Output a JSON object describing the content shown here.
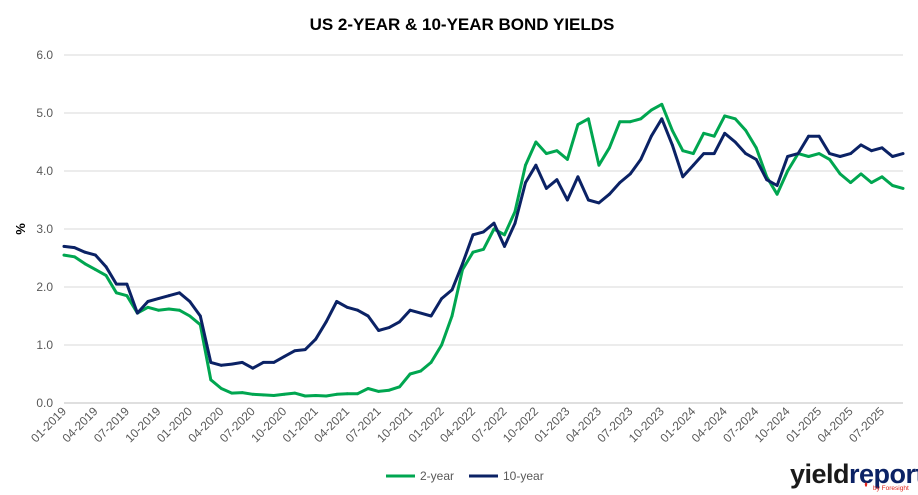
{
  "chart_data": {
    "type": "line",
    "title": "US 2-YEAR & 10-YEAR BOND YIELDS",
    "ylabel": "%",
    "xlabel": "",
    "ylim": [
      0,
      6
    ],
    "yticks": [
      "0.0",
      "1.0",
      "2.0",
      "3.0",
      "4.0",
      "5.0",
      "6.0"
    ],
    "xticks": [
      "01-2019",
      "04-2019",
      "07-2019",
      "10-2019",
      "01-2020",
      "04-2020",
      "07-2020",
      "10-2020",
      "01-2021",
      "04-2021",
      "07-2021",
      "10-2021",
      "01-2022",
      "04-2022",
      "07-2022",
      "10-2022",
      "01-2023",
      "04-2023",
      "07-2023",
      "10-2023",
      "01-2024",
      "04-2024",
      "07-2024",
      "10-2024",
      "01-2025",
      "04-2025",
      "07-2025"
    ],
    "x": [
      "01-2019",
      "02-2019",
      "03-2019",
      "04-2019",
      "05-2019",
      "06-2019",
      "07-2019",
      "08-2019",
      "09-2019",
      "10-2019",
      "11-2019",
      "12-2019",
      "01-2020",
      "02-2020",
      "03-2020",
      "04-2020",
      "05-2020",
      "06-2020",
      "07-2020",
      "08-2020",
      "09-2020",
      "10-2020",
      "11-2020",
      "12-2020",
      "01-2021",
      "02-2021",
      "03-2021",
      "04-2021",
      "05-2021",
      "06-2021",
      "07-2021",
      "08-2021",
      "09-2021",
      "10-2021",
      "11-2021",
      "12-2021",
      "01-2022",
      "02-2022",
      "03-2022",
      "04-2022",
      "05-2022",
      "06-2022",
      "07-2022",
      "08-2022",
      "09-2022",
      "10-2022",
      "11-2022",
      "12-2022",
      "01-2023",
      "02-2023",
      "03-2023",
      "04-2023",
      "05-2023",
      "06-2023",
      "07-2023",
      "08-2023",
      "09-2023",
      "10-2023",
      "11-2023",
      "12-2023",
      "01-2024",
      "02-2024",
      "03-2024",
      "04-2024",
      "05-2024",
      "06-2024",
      "07-2024",
      "08-2024",
      "09-2024",
      "10-2024",
      "11-2024",
      "12-2024",
      "01-2025",
      "02-2025",
      "03-2025",
      "04-2025",
      "05-2025",
      "06-2025",
      "07-2025",
      "08-2025",
      "09-2025"
    ],
    "series": [
      {
        "name": "2-year",
        "color": "#00a650",
        "values": [
          2.55,
          2.52,
          2.4,
          2.3,
          2.2,
          1.9,
          1.85,
          1.55,
          1.65,
          1.6,
          1.62,
          1.6,
          1.5,
          1.35,
          0.4,
          0.25,
          0.17,
          0.18,
          0.15,
          0.14,
          0.13,
          0.15,
          0.17,
          0.12,
          0.13,
          0.12,
          0.15,
          0.16,
          0.16,
          0.25,
          0.2,
          0.22,
          0.28,
          0.5,
          0.55,
          0.7,
          1.0,
          1.5,
          2.3,
          2.6,
          2.65,
          3.0,
          2.9,
          3.3,
          4.1,
          4.5,
          4.3,
          4.35,
          4.2,
          4.8,
          4.9,
          4.1,
          4.4,
          4.85,
          4.85,
          4.9,
          5.05,
          5.15,
          4.7,
          4.35,
          4.3,
          4.65,
          4.6,
          4.95,
          4.9,
          4.7,
          4.4,
          3.9,
          3.6,
          4.0,
          4.3,
          4.25,
          4.3,
          4.2,
          3.95,
          3.8,
          3.95,
          3.8,
          3.9,
          3.75,
          3.7
        ]
      },
      {
        "name": "10-year",
        "color": "#0b2265",
        "values": [
          2.7,
          2.68,
          2.6,
          2.55,
          2.35,
          2.05,
          2.05,
          1.55,
          1.75,
          1.8,
          1.85,
          1.9,
          1.75,
          1.5,
          0.7,
          0.65,
          0.67,
          0.7,
          0.6,
          0.7,
          0.7,
          0.8,
          0.9,
          0.92,
          1.1,
          1.4,
          1.75,
          1.65,
          1.6,
          1.5,
          1.25,
          1.3,
          1.4,
          1.6,
          1.55,
          1.5,
          1.8,
          1.95,
          2.4,
          2.9,
          2.95,
          3.1,
          2.7,
          3.1,
          3.8,
          4.1,
          3.7,
          3.85,
          3.5,
          3.9,
          3.5,
          3.45,
          3.6,
          3.8,
          3.95,
          4.2,
          4.6,
          4.9,
          4.45,
          3.9,
          4.1,
          4.3,
          4.3,
          4.65,
          4.5,
          4.3,
          4.2,
          3.85,
          3.75,
          4.25,
          4.3,
          4.6,
          4.6,
          4.3,
          4.25,
          4.3,
          4.45,
          4.35,
          4.4,
          4.25,
          4.3
        ]
      }
    ],
    "legend": "bottom",
    "grid": true
  },
  "branding": {
    "logo_word_1": "yield",
    "logo_word_2": "report",
    "logo_byline": "by Foresight"
  }
}
